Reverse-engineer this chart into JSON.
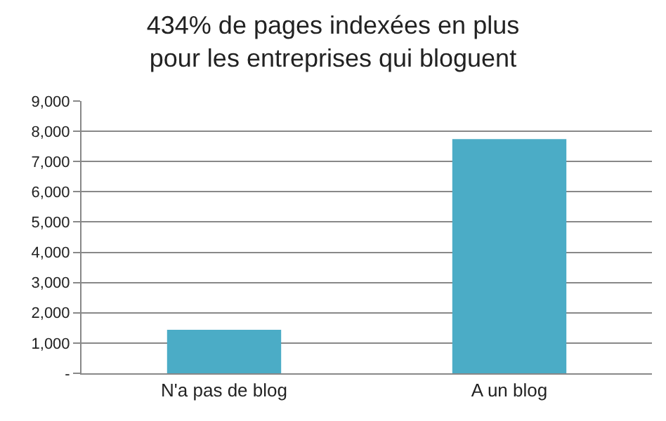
{
  "chart_data": {
    "type": "bar",
    "title": "434% de pages indexées en plus\npour les entreprises qui bloguent",
    "categories": [
      "N'a pas de blog",
      "A un blog"
    ],
    "values": [
      1440,
      7740
    ],
    "color": "#4bacc6",
    "ylim": [
      0,
      9000
    ],
    "yticks": [
      {
        "value": 0,
        "label": "-"
      },
      {
        "value": 1000,
        "label": "1,000"
      },
      {
        "value": 2000,
        "label": "2,000"
      },
      {
        "value": 3000,
        "label": "3,000"
      },
      {
        "value": 4000,
        "label": "4,000"
      },
      {
        "value": 5000,
        "label": "5,000"
      },
      {
        "value": 6000,
        "label": "6,000"
      },
      {
        "value": 7000,
        "label": "7,000"
      },
      {
        "value": 8000,
        "label": "8,000"
      },
      {
        "value": 9000,
        "label": "9,000"
      }
    ],
    "grid": "y",
    "legend": false
  }
}
